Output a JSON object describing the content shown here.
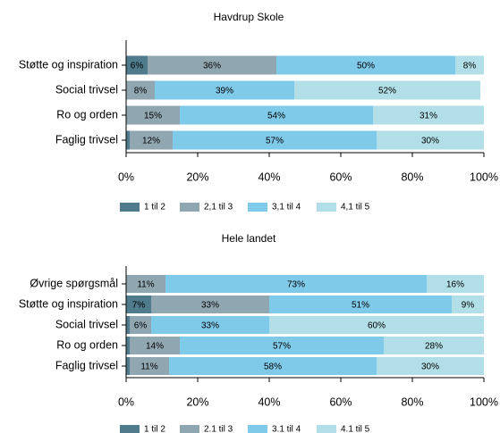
{
  "chart_data": [
    {
      "type": "stacked_barh",
      "title": "Havdrup Skole",
      "categories": [
        "Støtte og inspiration",
        "Social trivsel",
        "Ro og orden",
        "Faglig trivsel"
      ],
      "series": [
        {
          "name": "1 til 2",
          "color": "#4f7b8c",
          "values": [
            6,
            0,
            0,
            1
          ],
          "value_labels": [
            "6%",
            null,
            null,
            null
          ]
        },
        {
          "name": "2,1 til 3",
          "color": "#90a6b1",
          "values": [
            36,
            8,
            15,
            12
          ],
          "value_labels": [
            "36%",
            "8%",
            "15%",
            "12%"
          ]
        },
        {
          "name": "3,1 til 4",
          "color": "#7fc9e9",
          "values": [
            50,
            39,
            54,
            57
          ],
          "value_labels": [
            "50%",
            "39%",
            "54%",
            "57%"
          ]
        },
        {
          "name": "4,1 til 5",
          "color": "#b1dee7",
          "values": [
            8,
            52,
            31,
            30
          ],
          "value_labels": [
            "8%",
            "52%",
            "31%",
            "30%"
          ]
        }
      ],
      "xlim": [
        0,
        100
      ],
      "xticks": [
        {
          "value": 0,
          "label": "0%"
        },
        {
          "value": 20,
          "label": "20%"
        },
        {
          "value": 40,
          "label": "40%"
        },
        {
          "value": 60,
          "label": "60%"
        },
        {
          "value": 80,
          "label": "80%"
        },
        {
          "value": 100,
          "label": "100%"
        }
      ],
      "legend": "bottom"
    },
    {
      "type": "stacked_barh",
      "title": "Hele landet",
      "categories": [
        "Øvrige spørgsmål",
        "Støtte og inspiration",
        "Social trivsel",
        "Ro og orden",
        "Faglig trivsel"
      ],
      "series": [
        {
          "name": "1 til 2",
          "color": "#4f7b8c",
          "values": [
            0,
            7,
            1,
            1,
            1
          ],
          "value_labels": [
            null,
            "7%",
            null,
            null,
            null
          ]
        },
        {
          "name": "2.1 til 3",
          "color": "#90a6b1",
          "values": [
            11,
            33,
            6,
            14,
            11
          ],
          "value_labels": [
            "11%",
            "33%",
            "6%",
            "14%",
            "11%"
          ]
        },
        {
          "name": "3.1 til 4",
          "color": "#7fc9e9",
          "values": [
            73,
            51,
            33,
            57,
            58
          ],
          "value_labels": [
            "73%",
            "51%",
            "33%",
            "57%",
            "58%"
          ]
        },
        {
          "name": "4.1 til 5",
          "color": "#b1dee7",
          "values": [
            16,
            9,
            60,
            28,
            30
          ],
          "value_labels": [
            "16%",
            "9%",
            "60%",
            "28%",
            "30%"
          ]
        }
      ],
      "xlim": [
        0,
        100
      ],
      "xticks": [
        {
          "value": 0,
          "label": "0%"
        },
        {
          "value": 20,
          "label": "20%"
        },
        {
          "value": 40,
          "label": "40%"
        },
        {
          "value": 60,
          "label": "60%"
        },
        {
          "value": 80,
          "label": "80%"
        },
        {
          "value": 100,
          "label": "100%"
        }
      ],
      "legend": "bottom"
    }
  ]
}
